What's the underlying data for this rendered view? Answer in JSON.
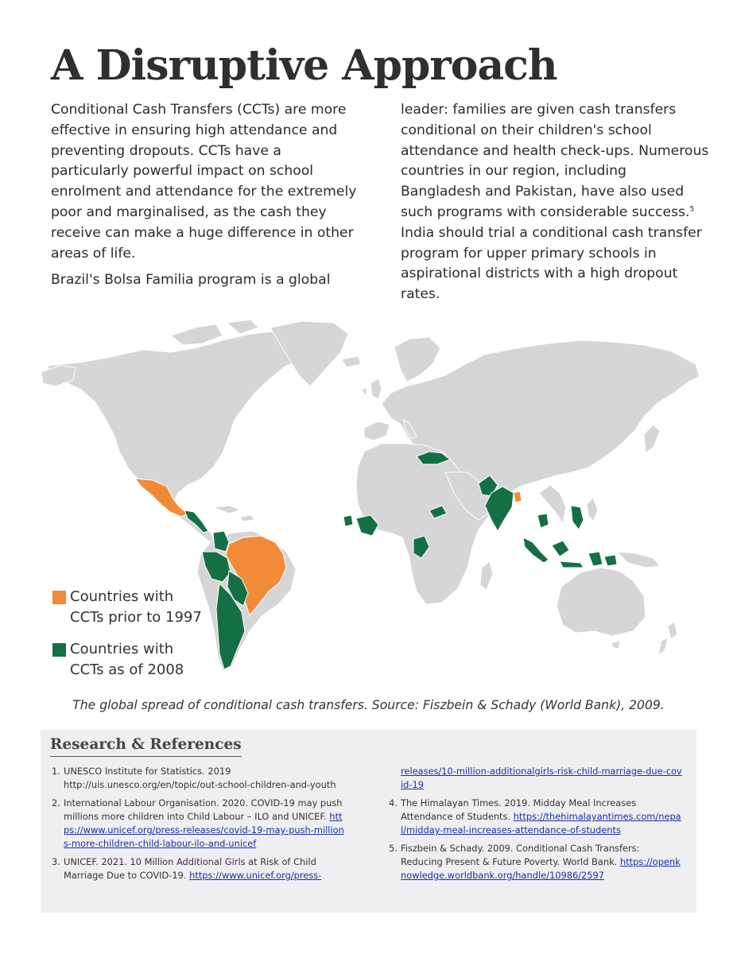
{
  "title": "A Disruptive Approach",
  "intro": {
    "left_p1": "Conditional Cash Transfers (CCTs) are more effective in ensuring high attendance and preventing dropouts. CCTs have a particularly powerful impact on school enrolment and attendance for the extremely poor and marginalised, as the cash they receive can make a huge difference in other areas of life.",
    "left_p2": "Brazil's Bolsa Familia program is a global",
    "right_part1": "leader: families are given cash transfers conditional on their children's school attendance and health check-ups. Numerous countries in our region, including Bangladesh and Pakistan, have also used such programs with considerable success.",
    "right_sup": "5",
    "right_part2": " India should trial a conditional cash transfer program for upper primary schools in aspirational districts with a high dropout rates."
  },
  "map": {
    "colors": {
      "land": "#d6d6d9",
      "cct_1997": "#f18b37",
      "cct_2008": "#156f45",
      "border": "#ffffff"
    },
    "legend": [
      {
        "line1": "Countries with",
        "line2": "CCTs prior to 1997",
        "color": "#f18b37"
      },
      {
        "line1": "Countries with",
        "line2": "CCTs as of 2008",
        "color": "#156f45"
      }
    ]
  },
  "caption": "The global spread of conditional cash transfers. Source: Fiszbein & Schady (World Bank), 2009.",
  "references": {
    "heading": "Research & References",
    "items": [
      {
        "num": "1.",
        "text": "UNESCO Institute for Statistics. 2019 http://uis.unesco.org/en/topic/out-school-children-and-youth",
        "link": ""
      },
      {
        "num": "2.",
        "text": "International Labour Organisation. 2020. COVID-19 may push millions more children into Child Labour – ILO and UNICEF. ",
        "link": "https://www.unicef.org/press-releases/covid-19-may-push-millions-more-children-child-labour-ilo-and-unicef"
      },
      {
        "num": "3.",
        "text": "UNICEF. 2021. 10 Million Additional Girls at Risk of Child Marriage Due to COVID-19. ",
        "link": "https://www.unicef.org/press-"
      },
      {
        "num": "",
        "text": "",
        "link": "releases/10-million-additionalgirls-risk-child-marriage-due-covid-19"
      },
      {
        "num": "4.",
        "text": "The Himalayan Times. 2019. Midday Meal Increases Attendance of Students. ",
        "link": "https://thehimalayantimes.com/nepal/midday-meal-increases-attendance-of-students"
      },
      {
        "num": "5.",
        "text": "Fiszbein & Schady. 2009. Conditional Cash Transfers: Reducing Present & Future Poverty. World Bank. ",
        "link": "https://openknowledge.worldbank.org/handle/10986/2597"
      }
    ]
  }
}
